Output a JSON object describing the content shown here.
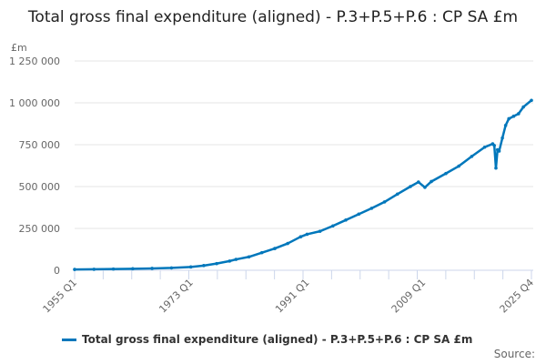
{
  "chart_data": {
    "type": "line",
    "title": "Total gross final expenditure (aligned) - P.3+P.5+P.6 : CP SA £m",
    "ylabel": "£m",
    "xlabel": "",
    "ylim": [
      0,
      1250000
    ],
    "yticks": [
      0,
      250000,
      500000,
      750000,
      1000000,
      1250000
    ],
    "ytick_labels": [
      "0",
      "250 000",
      "500 000",
      "750 000",
      "1 000 000",
      "1 250 000"
    ],
    "xrange": [
      "1955 Q1",
      "2025 Q4"
    ],
    "xtick_labels": [
      "1955 Q1",
      "1973 Q1",
      "1991 Q1",
      "2009 Q1",
      "2025 Q4"
    ],
    "grid": "horizontal",
    "legend_position": "bottom",
    "color": "#0077bb",
    "series": [
      {
        "name": "Total gross final expenditure (aligned) - P.3+P.5+P.6 : CP SA £m",
        "points": [
          [
            "1955 Q1",
            5000
          ],
          [
            "1958 Q1",
            6000
          ],
          [
            "1961 Q1",
            7500
          ],
          [
            "1964 Q1",
            9000
          ],
          [
            "1967 Q1",
            11000
          ],
          [
            "1970 Q1",
            14000
          ],
          [
            "1973 Q1",
            20000
          ],
          [
            "1975 Q1",
            28000
          ],
          [
            "1977 Q1",
            40000
          ],
          [
            "1979 Q1",
            55000
          ],
          [
            "1980 Q1",
            65000
          ],
          [
            "1982 Q1",
            80000
          ],
          [
            "1984 Q1",
            105000
          ],
          [
            "1986 Q1",
            130000
          ],
          [
            "1988 Q1",
            160000
          ],
          [
            "1990 Q1",
            200000
          ],
          [
            "1991 Q1",
            215000
          ],
          [
            "1993 Q1",
            233000
          ],
          [
            "1995 Q1",
            265000
          ],
          [
            "1997 Q1",
            300000
          ],
          [
            "1999 Q1",
            335000
          ],
          [
            "2001 Q1",
            370000
          ],
          [
            "2003 Q1",
            408000
          ],
          [
            "2005 Q1",
            455000
          ],
          [
            "2007 Q1",
            500000
          ],
          [
            "2008 Q2",
            527000
          ],
          [
            "2009 Q2",
            495000
          ],
          [
            "2010 Q2",
            530000
          ],
          [
            "2012 Q3",
            578000
          ],
          [
            "2014 Q3",
            622000
          ],
          [
            "2016 Q3",
            680000
          ],
          [
            "2018 Q3",
            735000
          ],
          [
            "2019 Q4",
            755000
          ],
          [
            "2020 Q1",
            745000
          ],
          [
            "2020 Q2",
            610000
          ],
          [
            "2020 Q3",
            720000
          ],
          [
            "2020 Q4",
            712000
          ],
          [
            "2021 Q2",
            790000
          ],
          [
            "2021 Q4",
            865000
          ],
          [
            "2022 Q2",
            905000
          ],
          [
            "2023 Q1",
            920000
          ],
          [
            "2023 Q4",
            935000
          ],
          [
            "2024 Q3",
            975000
          ],
          [
            "2025 Q4",
            1015000
          ]
        ]
      }
    ]
  },
  "legend": {
    "label": "Total gross final expenditure (aligned) - P.3+P.5+P.6 : CP SA £m"
  },
  "source": "Source:"
}
